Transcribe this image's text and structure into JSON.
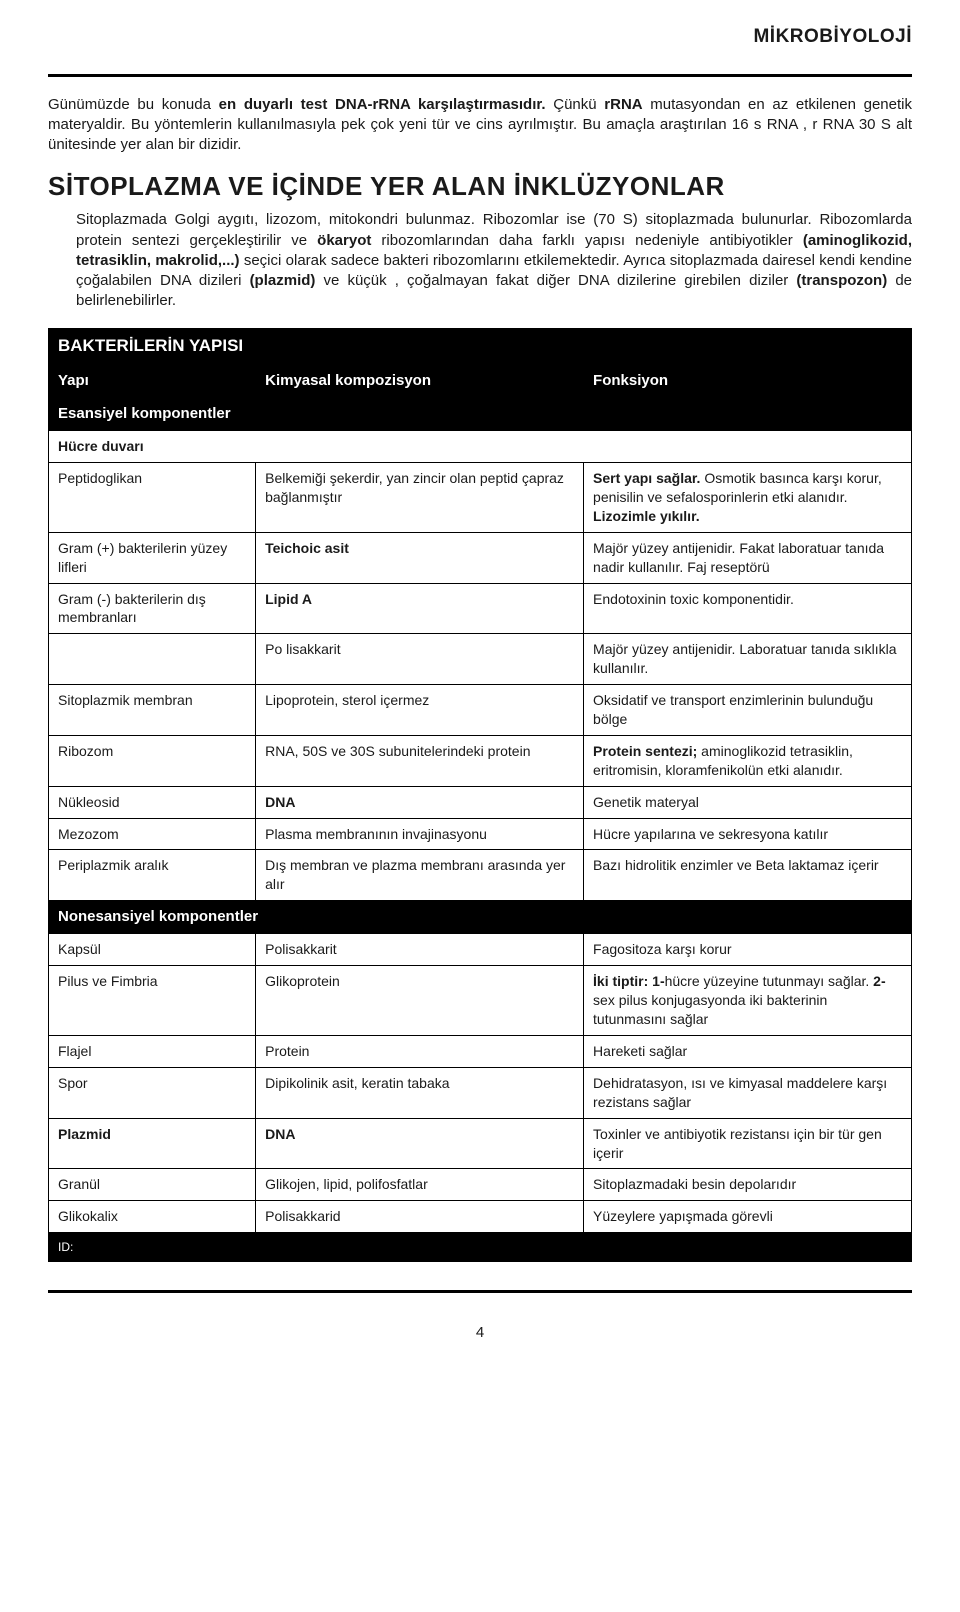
{
  "headerTitle": "MİKROBİYOLOJİ",
  "intro": {
    "parts": [
      {
        "t": "Günümüzde bu konuda "
      },
      {
        "t": "en duyarlı test DNA-rRNA karşılaştırmasıdır.",
        "b": true
      },
      {
        "t": " Çünkü "
      },
      {
        "t": "rRNA",
        "b": true
      },
      {
        "t": " mutasyondan en az etkilenen genetik materyaldir. Bu yöntemlerin kullanılmasıyla pek çok yeni tür ve cins ayrılmıştır. Bu amaçla araştırılan 16 s RNA , r RNA 30 S alt ünitesinde yer alan bir dizidir."
      }
    ]
  },
  "sectionTitle": "SİTOPLAZMA VE İÇİNDE YER ALAN İNKLÜZYONLAR",
  "sectionBody": {
    "parts": [
      {
        "t": "Sitoplazmada Golgi aygıtı, lizozom, mitokondri bulunmaz. Ribozomlar ise (70 S) sitoplazmada bulunurlar. Ribozomlarda protein sentezi gerçekleştirilir ve "
      },
      {
        "t": "ökaryot",
        "b": true
      },
      {
        "t": " ribozomlarından daha farklı yapısı nedeniyle antibiyotikler "
      },
      {
        "t": "(aminoglikozid, tetrasiklin, makrolid,...)",
        "b": true
      },
      {
        "t": " seçici olarak sadece bakteri ribozomlarını etkilemektedir. Ayrıca sitoplazmada dairesel kendi kendine çoğalabilen DNA dizileri "
      },
      {
        "t": "(plazmid)",
        "b": true
      },
      {
        "t": " ve küçük , çoğalmayan fakat diğer DNA dizilerine girebilen diziler "
      },
      {
        "t": "(transpozon)",
        "b": true
      },
      {
        "t": " de belirlenebilirler."
      }
    ]
  },
  "table": {
    "title": "BAKTERİLERİN YAPISI",
    "columns": [
      "Yapı",
      "Kimyasal kompozisyon",
      "Fonksiyon"
    ],
    "subEssential": "Esansiyel komponentler",
    "subNonessential": "Nonesansiyel komponentler",
    "cellWallHeader": "Hücre duvarı",
    "essentialRows": [
      {
        "c0": "Peptidoglikan",
        "c1": [
          {
            "t": "Belkemiği şekerdir, yan zincir olan peptid çapraz bağlanmıştır"
          }
        ],
        "c2": [
          {
            "t": "Sert yapı sağlar.",
            "b": true
          },
          {
            "t": " Osmotik basınca karşı korur, penisilin ve sefalosporinlerin etki alanıdır. "
          },
          {
            "t": "Lizozimle yıkılır.",
            "b": true
          }
        ]
      },
      {
        "c0": "Gram (+) bakterilerin yüzey lifleri",
        "c1": [
          {
            "t": "Teichoic asit",
            "b": true
          }
        ],
        "c2": [
          {
            "t": "Majör yüzey antijenidir. Fakat laboratuar tanıda nadir kullanılır. Faj reseptörü"
          }
        ]
      },
      {
        "c0": "Gram (-) bakterilerin dış membranları",
        "c1": [
          {
            "t": "Lipid A",
            "b": true
          }
        ],
        "c2": [
          {
            "t": "Endotoxinin toxic komponentidir."
          }
        ]
      },
      {
        "c0": "",
        "c1": [
          {
            "t": "Po lisakkarit"
          }
        ],
        "c2": [
          {
            "t": "Majör yüzey antijenidir. Laboratuar tanıda sıklıkla kullanılır."
          }
        ]
      },
      {
        "c0": "Sitoplazmik membran",
        "c1": [
          {
            "t": "Lipoprotein, sterol içermez"
          }
        ],
        "c2": [
          {
            "t": "Oksidatif ve transport enzimlerinin bulunduğu bölge"
          }
        ]
      },
      {
        "c0": "Ribozom",
        "c1": [
          {
            "t": "RNA, 50S ve 30S subunitelerindeki protein"
          }
        ],
        "c2": [
          {
            "t": "Protein sentezi;",
            "b": true
          },
          {
            "t": " aminoglikozid tetrasiklin, eritromisin, kloramfenikolün etki alanıdır."
          }
        ]
      },
      {
        "c0": "Nükleosid",
        "c1": [
          {
            "t": "DNA",
            "b": true
          }
        ],
        "c2": [
          {
            "t": "Genetik materyal"
          }
        ]
      },
      {
        "c0": "Mezozom",
        "c1": [
          {
            "t": "Plasma membranının invajinasyonu"
          }
        ],
        "c2": [
          {
            "t": "Hücre yapılarına ve sekresyona katılır"
          }
        ]
      },
      {
        "c0": "Periplazmik aralık",
        "c1": [
          {
            "t": "Dış membran ve plazma membranı arasında yer alır"
          }
        ],
        "c2": [
          {
            "t": "Bazı hidrolitik enzimler ve Beta laktamaz içerir"
          }
        ]
      }
    ],
    "nonessentialRows": [
      {
        "c0": "Kapsül",
        "c1": [
          {
            "t": "Polisakkarit"
          }
        ],
        "c2": [
          {
            "t": "Fagositoza karşı korur"
          }
        ]
      },
      {
        "c0": "Pilus ve Fimbria",
        "c1": [
          {
            "t": "Glikoprotein"
          }
        ],
        "c2": [
          {
            "t": "İki tiptir: 1-",
            "b": true
          },
          {
            "t": "hücre yüzeyine tutunmayı sağlar. "
          },
          {
            "t": "2-",
            "b": true
          },
          {
            "t": "sex pilus konjugasyonda iki bakterinin tutunmasını sağlar"
          }
        ]
      },
      {
        "c0": "Flajel",
        "c1": [
          {
            "t": "Protein"
          }
        ],
        "c2": [
          {
            "t": "Hareketi sağlar"
          }
        ]
      },
      {
        "c0": "Spor",
        "c1": [
          {
            "t": "Dipikolinik asit, keratin tabaka"
          }
        ],
        "c2": [
          {
            "t": "Dehidratasyon, ısı ve kimyasal maddelere karşı rezistans sağlar"
          }
        ]
      },
      {
        "c0": "Plazmid",
        "c0b": true,
        "c1": [
          {
            "t": "DNA",
            "b": true
          }
        ],
        "c2": [
          {
            "t": "Toxinler ve antibiyotik rezistansı için bir tür gen içerir"
          }
        ]
      },
      {
        "c0": "Granül",
        "c1": [
          {
            "t": "Glikojen, lipid, polifosfatlar"
          }
        ],
        "c2": [
          {
            "t": "Sitoplazmadaki besin depolarıdır"
          }
        ]
      },
      {
        "c0": "Glikokalix",
        "c1": [
          {
            "t": "Polisakkarid"
          }
        ],
        "c2": [
          {
            "t": "Yüzeylere yapışmada görevli"
          }
        ]
      }
    ],
    "idLabel": "ID:"
  },
  "pageNumber": "4"
}
